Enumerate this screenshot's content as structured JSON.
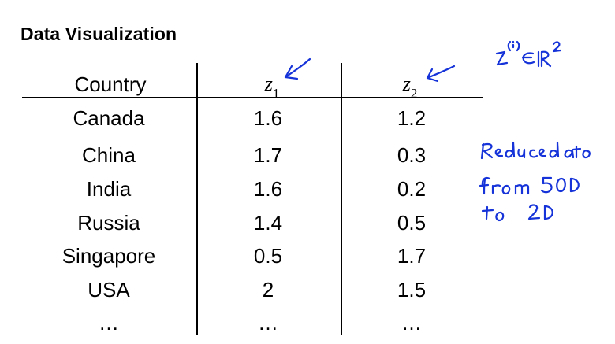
{
  "title": "Data Visualization",
  "table": {
    "headers": {
      "country": "Country",
      "z1": "z",
      "z1_sub": "1",
      "z2": "z",
      "z2_sub": "2"
    },
    "rows": [
      {
        "country": "Canada",
        "z1": "1.6",
        "z2": "1.2"
      },
      {
        "country": "China",
        "z1": "1.7",
        "z2": "0.3"
      },
      {
        "country": "India",
        "z1": "1.6",
        "z2": "0.2"
      },
      {
        "country": "Russia",
        "z1": "1.4",
        "z2": "0.5"
      },
      {
        "country": "Singapore",
        "z1": "0.5",
        "z2": "1.7"
      },
      {
        "country": "USA",
        "z1": "2",
        "z2": "1.5"
      },
      {
        "country": "…",
        "z1": "…",
        "z2": "…"
      }
    ]
  },
  "annotations": {
    "ink_color": "#1533d8",
    "note_z": "z^(i) ∈ ℝ²",
    "note_reduce": "Reduce data from 50D to 2D"
  }
}
